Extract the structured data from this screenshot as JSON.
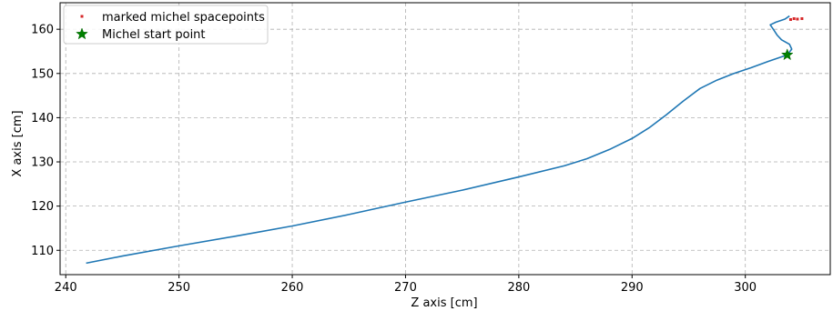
{
  "chart_data": {
    "type": "line",
    "title": "",
    "xlabel": "Z axis [cm]",
    "ylabel": "X axis [cm]",
    "xlim": [
      239.5,
      307.5
    ],
    "ylim": [
      104.5,
      166
    ],
    "xticks": [
      240,
      250,
      260,
      270,
      280,
      290,
      300
    ],
    "yticks": [
      110,
      120,
      130,
      140,
      150,
      160
    ],
    "grid": true,
    "legend_position": "top-left",
    "colors": {
      "track": "#1f77b4",
      "michel": "#d62728",
      "start": "#008000"
    },
    "series": [
      {
        "name": "",
        "kind": "line",
        "x": [
          241.8,
          245,
          250,
          255,
          260,
          265,
          270,
          275,
          280,
          284,
          286,
          288,
          290,
          291.5,
          293,
          294.5,
          296,
          297.5,
          299,
          300.5,
          302,
          303.7
        ],
        "y": [
          107.1,
          108.7,
          111.0,
          113.2,
          115.5,
          118.1,
          120.9,
          123.6,
          126.6,
          129.1,
          130.7,
          132.8,
          135.3,
          137.7,
          140.6,
          143.7,
          146.6,
          148.5,
          150.0,
          151.3,
          152.7,
          154.2
        ]
      },
      {
        "name": "",
        "kind": "line",
        "x": [
          303.7,
          304.1,
          303.9,
          303.2,
          302.8,
          302.5,
          302.2,
          302.7,
          303.5,
          303.9
        ],
        "y": [
          154.2,
          155.5,
          156.6,
          157.6,
          158.7,
          159.9,
          161.0,
          161.6,
          162.3,
          163.0
        ]
      },
      {
        "name": "marked michel spacepoints",
        "kind": "scatter",
        "x": [
          304.0,
          304.3,
          304.6,
          305.0
        ],
        "y": [
          162.2,
          162.4,
          162.3,
          162.4
        ]
      },
      {
        "name": "Michel start point",
        "kind": "marker",
        "x": [
          303.7
        ],
        "y": [
          154.2
        ]
      }
    ],
    "legend": [
      {
        "label": "marked michel spacepoints",
        "marker": "square",
        "color": "#d62728"
      },
      {
        "label": "Michel start point",
        "marker": "star",
        "color": "#008000"
      }
    ]
  }
}
